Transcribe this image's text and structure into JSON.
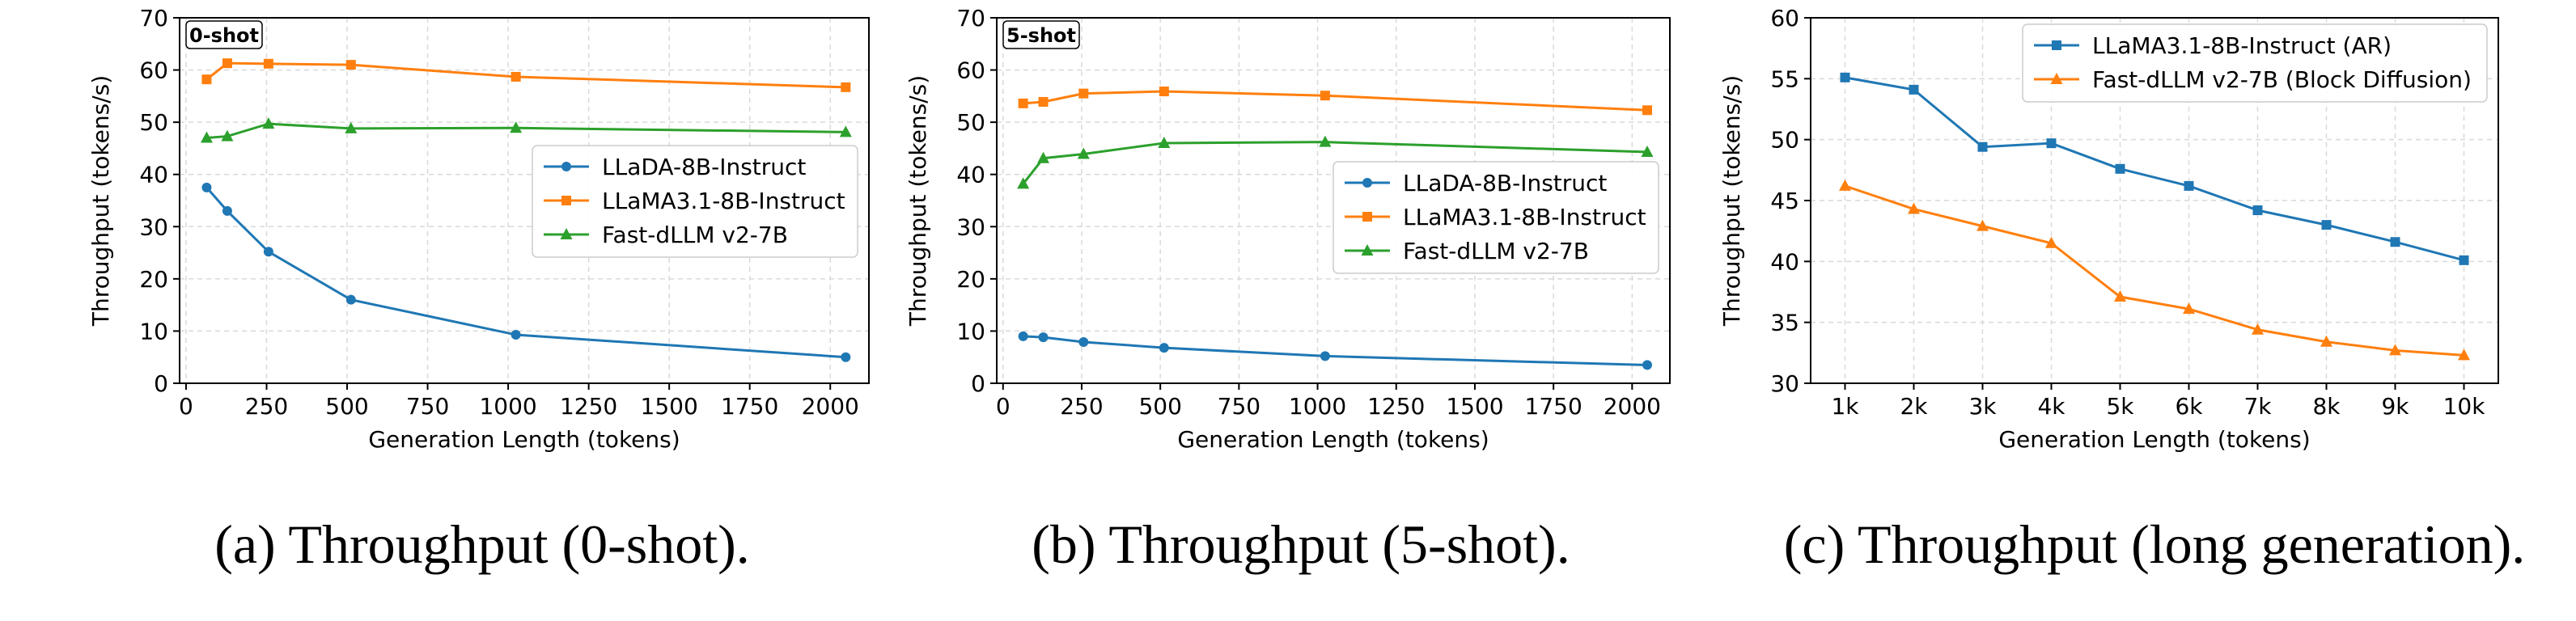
{
  "colors": {
    "blue": "#1f77b4",
    "orange": "#ff7f0e",
    "green": "#2ca02c",
    "grid": "#d9d9d9"
  },
  "chart_data": [
    {
      "type": "line",
      "panel": "a",
      "caption": "(a) Throughput (0-shot).",
      "badge": "0-shot",
      "xlabel": "Generation Length (tokens)",
      "ylabel": "Throughput (tokens/s)",
      "xlim": [
        -20,
        2120
      ],
      "ylim": [
        0,
        70
      ],
      "xticks": [
        0,
        250,
        500,
        750,
        1000,
        1250,
        1500,
        1750,
        2000
      ],
      "xtick_labels": [
        "0",
        "250",
        "500",
        "750",
        "1000",
        "1250",
        "1500",
        "1750",
        "2000"
      ],
      "yticks": [
        0,
        10,
        20,
        30,
        40,
        50,
        60,
        70
      ],
      "ytick_labels": [
        "0",
        "10",
        "20",
        "30",
        "40",
        "50",
        "60",
        "70"
      ],
      "legend": "center-right",
      "grid": true,
      "series": [
        {
          "name": "LLaDA-8B-Instruct",
          "color": "blue",
          "marker": "circle",
          "x": [
            64,
            128,
            256,
            512,
            1024,
            2048
          ],
          "y": [
            37.5,
            33.0,
            25.2,
            16.0,
            9.3,
            5.0
          ]
        },
        {
          "name": "LLaMA3.1-8B-Instruct",
          "color": "orange",
          "marker": "square",
          "x": [
            64,
            128,
            256,
            512,
            1024,
            2048
          ],
          "y": [
            58.2,
            61.3,
            61.2,
            61.0,
            58.7,
            56.7
          ]
        },
        {
          "name": "Fast-dLLM v2-7B",
          "color": "green",
          "marker": "triangle",
          "x": [
            64,
            128,
            256,
            512,
            1024,
            2048
          ],
          "y": [
            47.0,
            47.3,
            49.7,
            48.8,
            48.9,
            48.1
          ]
        }
      ]
    },
    {
      "type": "line",
      "panel": "b",
      "caption": "(b) Throughput (5-shot).",
      "badge": "5-shot",
      "xlabel": "Generation Length (tokens)",
      "ylabel": "Throughput (tokens/s)",
      "xlim": [
        -20,
        2120
      ],
      "ylim": [
        0,
        70
      ],
      "xticks": [
        0,
        250,
        500,
        750,
        1000,
        1250,
        1500,
        1750,
        2000
      ],
      "xtick_labels": [
        "0",
        "250",
        "500",
        "750",
        "1000",
        "1250",
        "1500",
        "1750",
        "2000"
      ],
      "yticks": [
        0,
        10,
        20,
        30,
        40,
        50,
        60,
        70
      ],
      "ytick_labels": [
        "0",
        "10",
        "20",
        "30",
        "40",
        "50",
        "60",
        "70"
      ],
      "legend": "center-right",
      "grid": true,
      "series": [
        {
          "name": "LLaDA-8B-Instruct",
          "color": "blue",
          "marker": "circle",
          "x": [
            64,
            128,
            256,
            512,
            1024,
            2048
          ],
          "y": [
            9.0,
            8.8,
            7.9,
            6.8,
            5.2,
            3.5
          ]
        },
        {
          "name": "LLaMA3.1-8B-Instruct",
          "color": "orange",
          "marker": "square",
          "x": [
            64,
            128,
            256,
            512,
            1024,
            2048
          ],
          "y": [
            53.6,
            53.9,
            55.5,
            55.9,
            55.1,
            52.3
          ]
        },
        {
          "name": "Fast-dLLM v2-7B",
          "color": "green",
          "marker": "triangle",
          "x": [
            64,
            128,
            256,
            512,
            1024,
            2048
          ],
          "y": [
            38.2,
            43.1,
            43.9,
            46.0,
            46.2,
            44.3
          ]
        }
      ]
    },
    {
      "type": "line",
      "panel": "c",
      "caption": "(c) Throughput (long generation).",
      "xlabel": "Generation Length (tokens)",
      "ylabel": "Throughput (tokens/s)",
      "xlim": [
        0.5,
        10.5
      ],
      "ylim": [
        30,
        60
      ],
      "xticks": [
        1,
        2,
        3,
        4,
        5,
        6,
        7,
        8,
        9,
        10
      ],
      "xtick_labels": [
        "1k",
        "2k",
        "3k",
        "4k",
        "5k",
        "6k",
        "7k",
        "8k",
        "9k",
        "10k"
      ],
      "yticks": [
        30,
        35,
        40,
        45,
        50,
        55,
        60
      ],
      "ytick_labels": [
        "30",
        "35",
        "40",
        "45",
        "50",
        "55",
        "60"
      ],
      "legend": "top-right",
      "grid": true,
      "series": [
        {
          "name": "LLaMA3.1-8B-Instruct (AR)",
          "color": "blue",
          "marker": "square",
          "x": [
            1,
            2,
            3,
            4,
            5,
            6,
            7,
            8,
            9,
            10
          ],
          "y": [
            55.1,
            54.1,
            49.4,
            49.7,
            47.6,
            46.2,
            44.2,
            43.0,
            41.6,
            40.1
          ]
        },
        {
          "name": "Fast-dLLM v2-7B (Block Diffusion)",
          "color": "orange",
          "marker": "triangle",
          "x": [
            1,
            2,
            3,
            4,
            5,
            6,
            7,
            8,
            9,
            10
          ],
          "y": [
            46.2,
            44.3,
            42.9,
            41.5,
            37.1,
            36.1,
            34.4,
            33.4,
            32.7,
            32.3
          ]
        }
      ]
    }
  ]
}
